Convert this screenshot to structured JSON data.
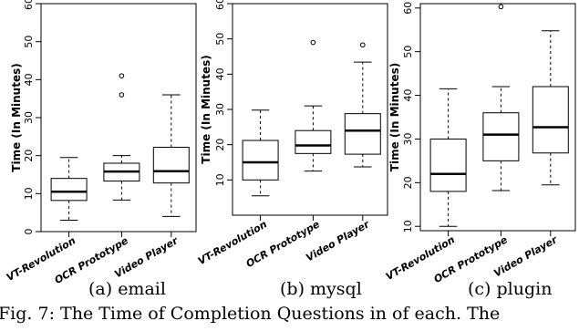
{
  "captions": {
    "sub": [
      "(a) email",
      "(b) mysql",
      "(c) plugin"
    ],
    "figure": "Fig. 7: The Time of Completion Questions in of each. The"
  },
  "chart_data": [
    {
      "type": "boxplot",
      "subcaption": "(a) email",
      "ylabel": "Time (In Minutes)",
      "ylim": [
        0,
        60
      ],
      "yticks": [
        0,
        10,
        20,
        30,
        40,
        50,
        60
      ],
      "categories": [
        "VT-Revolution",
        "OCR Prototype",
        "Video Player"
      ],
      "boxes": [
        {
          "whisker_low": 3,
          "q1": 8.2,
          "median": 10.5,
          "q3": 14,
          "whisker_high": 19.5,
          "outliers": []
        },
        {
          "whisker_low": 8.3,
          "q1": 13.3,
          "median": 15.8,
          "q3": 18,
          "whisker_high": 20,
          "outliers": [
            36,
            41
          ]
        },
        {
          "whisker_low": 4,
          "q1": 12.8,
          "median": 15.9,
          "q3": 22.2,
          "whisker_high": 36,
          "outliers": []
        }
      ]
    },
    {
      "type": "boxplot",
      "subcaption": "(b) mysql",
      "ylabel": "Time (In Minutes)",
      "ylim": [
        0,
        60
      ],
      "yticks": [
        10,
        20,
        30,
        40,
        50,
        60
      ],
      "categories": [
        "VT-Revolution",
        "OCR Prototype",
        "Video Player"
      ],
      "boxes": [
        {
          "whisker_low": 5.5,
          "q1": 10,
          "median": 15,
          "q3": 21.2,
          "whisker_high": 29.8,
          "outliers": []
        },
        {
          "whisker_low": 12.5,
          "q1": 17.5,
          "median": 19.8,
          "q3": 24,
          "whisker_high": 31,
          "outliers": [
            49
          ]
        },
        {
          "whisker_low": 13.7,
          "q1": 17.3,
          "median": 24,
          "q3": 28.8,
          "whisker_high": 43.4,
          "outliers": [
            48.3
          ]
        }
      ]
    },
    {
      "type": "boxplot",
      "subcaption": "(c) plugin",
      "ylabel": "Time (In Minutes)",
      "ylim": [
        9,
        61
      ],
      "yticks": [
        10,
        20,
        30,
        40,
        50,
        60
      ],
      "categories": [
        "VT-Revolution",
        "OCR Prototype",
        "Video Player"
      ],
      "boxes": [
        {
          "whisker_low": 10,
          "q1": 18,
          "median": 22,
          "q3": 30,
          "whisker_high": 41.5,
          "outliers": []
        },
        {
          "whisker_low": 18.2,
          "q1": 25,
          "median": 31,
          "q3": 36,
          "whisker_high": 42,
          "outliers": [
            60.3
          ]
        },
        {
          "whisker_low": 19.5,
          "q1": 26.8,
          "median": 32.7,
          "q3": 42,
          "whisker_high": 54.8,
          "outliers": []
        }
      ]
    }
  ]
}
